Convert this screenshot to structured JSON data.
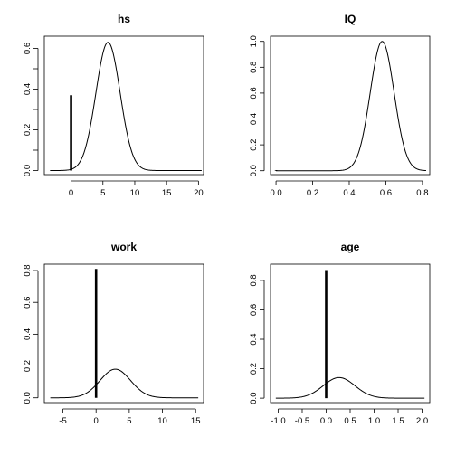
{
  "chart_data": [
    {
      "type": "line",
      "title": "hs",
      "xlim": [
        -4.2,
        20.8
      ],
      "ylim": [
        -0.02,
        0.66
      ],
      "xticks": [
        0,
        5,
        10,
        15,
        20
      ],
      "xtick_labels": [
        "0",
        "5",
        "10",
        "15",
        "20"
      ],
      "yticks": [
        0.0,
        0.1,
        0.2,
        0.3,
        0.4,
        0.5,
        0.6
      ],
      "ytick_labels": [
        "0.0",
        "",
        "0.2",
        "",
        "0.4",
        "",
        "0.6"
      ],
      "spike": {
        "x": 0,
        "height": 0.37
      },
      "density": {
        "mean": 5.8,
        "sd": 1.9,
        "peak": 0.63,
        "xmin": -3.3,
        "xmax": 20.5
      }
    },
    {
      "type": "line",
      "title": "IQ",
      "xlim": [
        -0.03,
        0.84
      ],
      "ylim": [
        -0.03,
        1.04
      ],
      "xticks": [
        0.0,
        0.2,
        0.4,
        0.6,
        0.8
      ],
      "xtick_labels": [
        "0.0",
        "0.2",
        "0.4",
        "0.6",
        "0.8"
      ],
      "yticks": [
        0.0,
        0.2,
        0.4,
        0.6,
        0.8,
        1.0
      ],
      "ytick_labels": [
        "0.0",
        "0.2",
        "0.4",
        "0.6",
        "0.8",
        "1.0"
      ],
      "spike": {
        "x": 0.0,
        "height": 0.005
      },
      "density": {
        "mean": 0.58,
        "sd": 0.065,
        "peak": 1.0,
        "xmin": 0.0,
        "xmax": 0.82
      }
    },
    {
      "type": "line",
      "title": "work",
      "xlim": [
        -7.8,
        16.2
      ],
      "ylim": [
        -0.03,
        0.84
      ],
      "xticks": [
        -5,
        0,
        5,
        10,
        15
      ],
      "xtick_labels": [
        "-5",
        "0",
        "5",
        "10",
        "15"
      ],
      "yticks": [
        0.0,
        0.2,
        0.4,
        0.6,
        0.8
      ],
      "ytick_labels": [
        "0.0",
        "0.2",
        "0.4",
        "0.6",
        "0.8"
      ],
      "spike": {
        "x": 0,
        "height": 0.81
      },
      "density": {
        "mean": 2.9,
        "sd": 2.3,
        "peak": 0.18,
        "xmin": -6.9,
        "xmax": 15.4
      }
    },
    {
      "type": "line",
      "title": "age",
      "xlim": [
        -1.16,
        2.16
      ],
      "ylim": [
        -0.03,
        0.91
      ],
      "xticks": [
        -1.0,
        -0.5,
        0.0,
        0.5,
        1.0,
        1.5,
        2.0
      ],
      "xtick_labels": [
        "-1.0",
        "-0.5",
        "0.0",
        "0.5",
        "1.0",
        "1.5",
        "2.0"
      ],
      "yticks": [
        0.0,
        0.2,
        0.4,
        0.6,
        0.8
      ],
      "ytick_labels": [
        "0.0",
        "0.2",
        "0.4",
        "0.6",
        "0.8"
      ],
      "spike": {
        "x": 0.0,
        "height": 0.87
      },
      "density": {
        "mean": 0.27,
        "sd": 0.33,
        "peak": 0.14,
        "xmin": -1.05,
        "xmax": 2.05
      }
    }
  ]
}
